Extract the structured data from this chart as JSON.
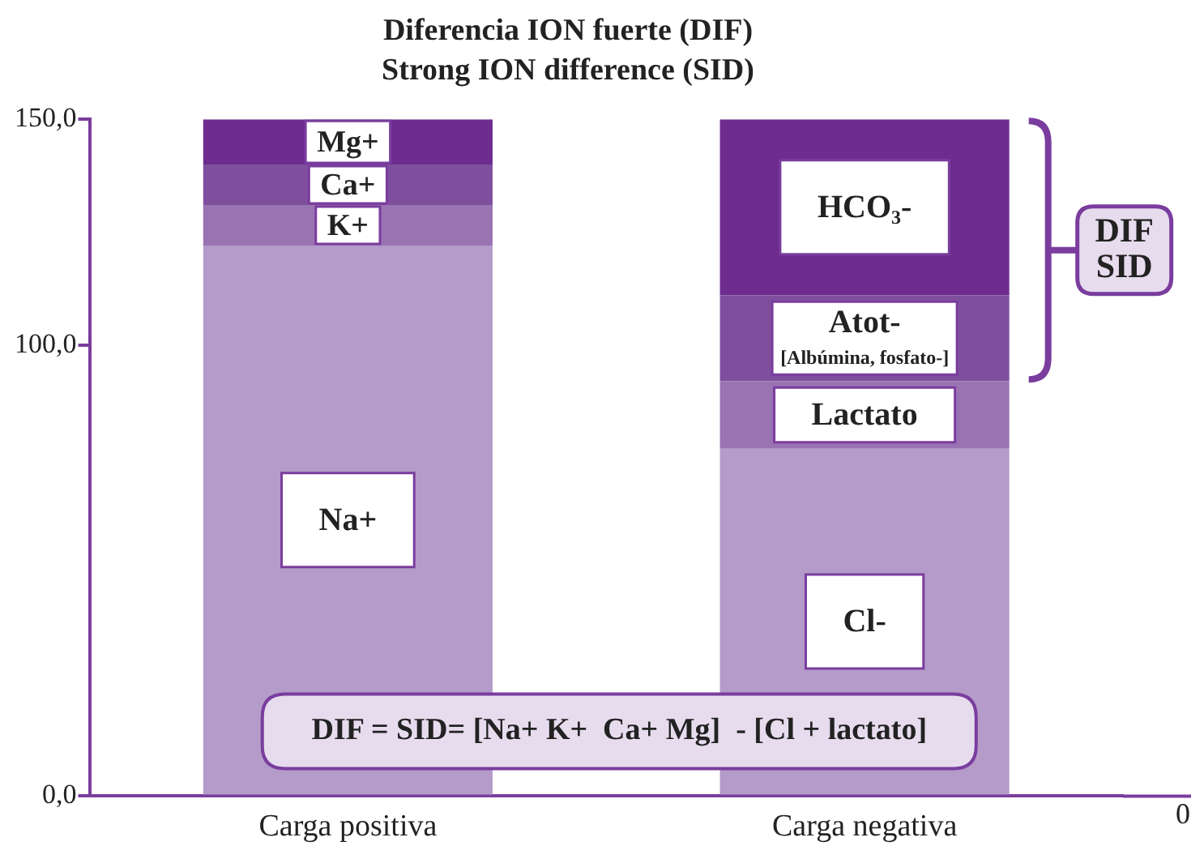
{
  "chart_data": {
    "type": "bar",
    "stacked": true,
    "title": "Diferencia ION fuerte (DIF)",
    "subtitle": "Strong ION difference (SID)",
    "categories": [
      "Carga positiva",
      "Carga negativa"
    ],
    "series": [
      {
        "name": "Na+",
        "color": "#b49bc9",
        "values": [
          122,
          null
        ]
      },
      {
        "name": "K+",
        "color": "#9a73b3",
        "values": [
          9,
          null
        ]
      },
      {
        "name": "Ca+",
        "color": "#7f4f9e",
        "values": [
          9,
          null
        ]
      },
      {
        "name": "Mg+",
        "color": "#6e2c8e",
        "values": [
          10,
          null
        ]
      },
      {
        "name": "Cl-",
        "color": "#b49bc9",
        "values": [
          null,
          77
        ]
      },
      {
        "name": "Lactato",
        "color": "#9a73b3",
        "values": [
          null,
          15
        ]
      },
      {
        "name": "Atot-\n[Albúmina, fosfato-]",
        "color": "#7f4f9e",
        "values": [
          null,
          19
        ]
      },
      {
        "name": "HCO₃-",
        "color": "#6e2c8e",
        "values": [
          null,
          39
        ]
      }
    ],
    "ylim": [
      0,
      150
    ],
    "yticks": [
      {
        "value": 0,
        "label": "0,0"
      },
      {
        "value": 100,
        "label": "100,0"
      },
      {
        "value": 150,
        "label": "150,0"
      }
    ],
    "grid": false,
    "legend": false,
    "annotations": [
      "DIF SID",
      "DIF = SID= [Na+ K+  Ca+ Mg]  - [Cl + lactato]",
      "0"
    ]
  }
}
